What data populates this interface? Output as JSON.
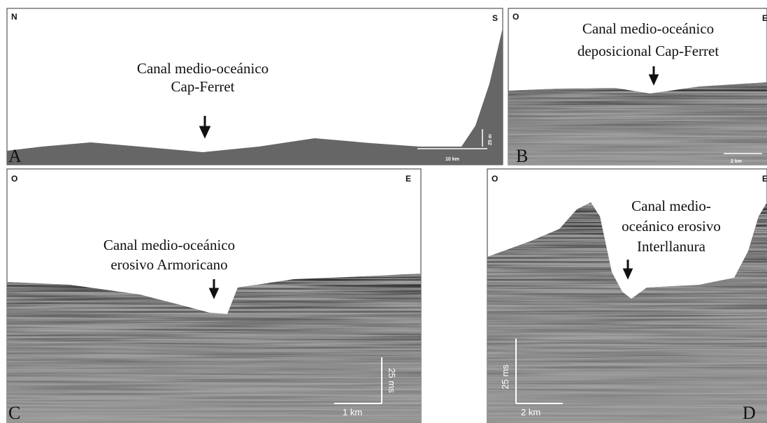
{
  "panels": [
    {
      "letter": "A",
      "left": "N",
      "right": "S",
      "caption": [
        "Canal medio-oceánico",
        "Cap-Ferret"
      ],
      "scale_vertical": "25 m",
      "scale_horizontal": "10 km"
    },
    {
      "letter": "B",
      "left": "O",
      "right": "E",
      "caption": [
        "Canal medio-oceánico",
        "deposicional Cap-Ferret"
      ],
      "scale_horizontal": "2 km"
    },
    {
      "letter": "C",
      "left": "O",
      "right": "E",
      "caption": [
        "Canal medio-oceánico",
        "erosivo Armoricano"
      ],
      "scale_vertical": "25 ms",
      "scale_horizontal": "1 km"
    },
    {
      "letter": "D",
      "left": "O",
      "right": "E",
      "caption": [
        "Canal medio-",
        "oceánico erosivo",
        "Interllanura"
      ],
      "scale_vertical": "25 ms",
      "scale_horizontal": "2 km"
    }
  ]
}
